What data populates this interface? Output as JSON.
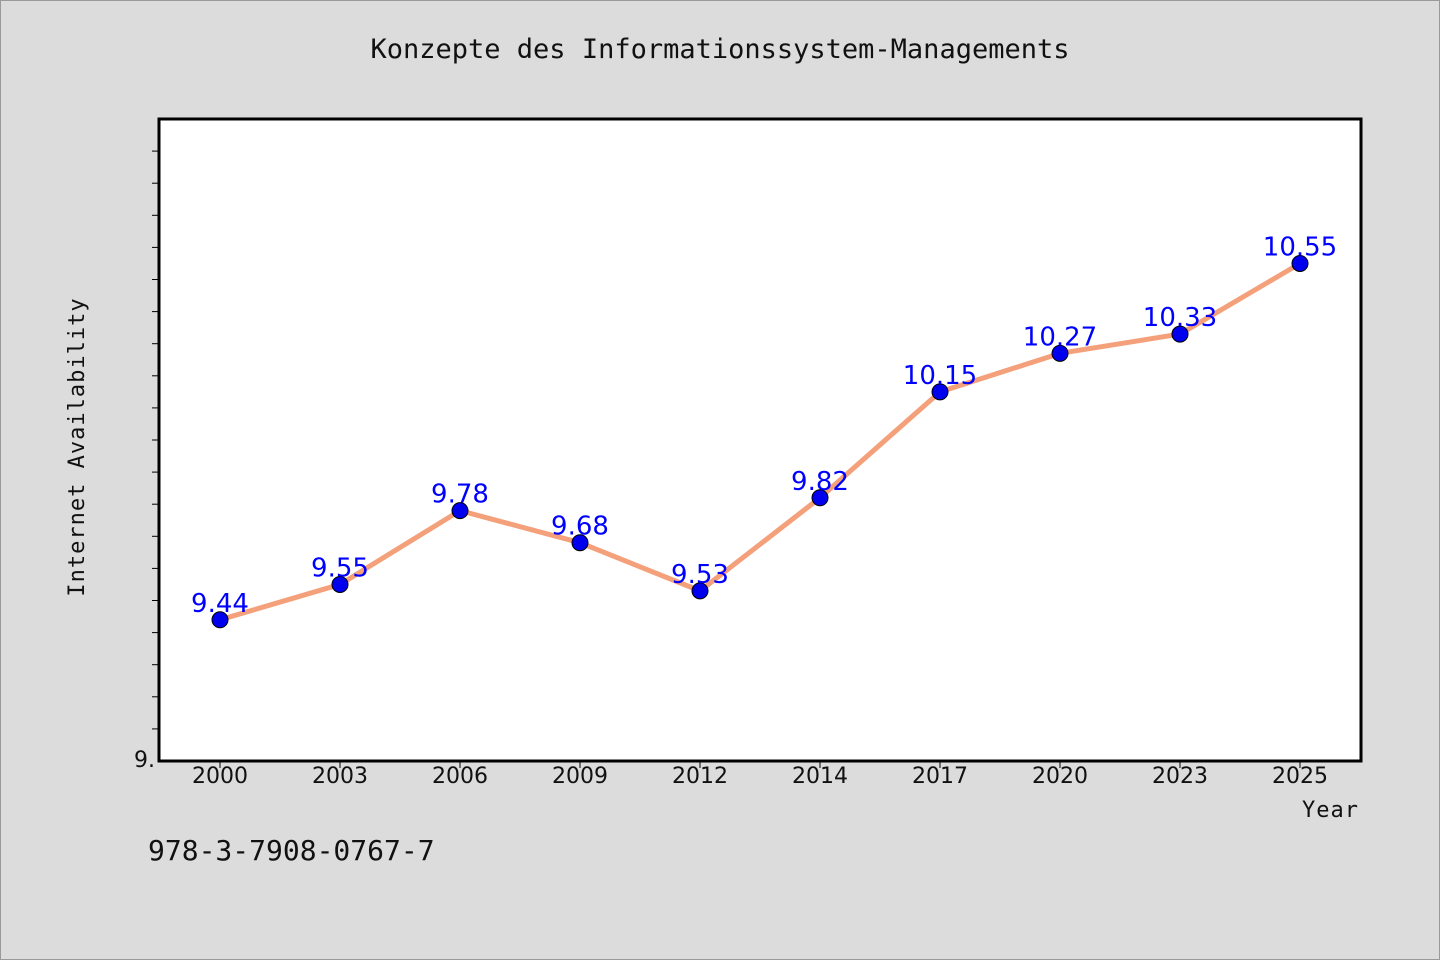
{
  "title": "Konzepte des Informationssystem-Managements",
  "footer_text": "978-3-7908-0767-7",
  "colors": {
    "background": "#dcdcdc",
    "plot_area": "#ffffff",
    "line": "#f4a07a",
    "marker": "#0000ee",
    "data_label": "#0000ff"
  },
  "chart_data": {
    "type": "line",
    "title": "Konzepte des Informationssystem-Managements",
    "xlabel": "Year",
    "ylabel": "Internet Availability",
    "categories": [
      "2000",
      "2003",
      "2006",
      "2009",
      "2012",
      "2014",
      "2017",
      "2020",
      "2023",
      "2025"
    ],
    "series": [
      {
        "values": [
          9.44,
          9.55,
          9.78,
          9.68,
          9.53,
          9.82,
          10.15,
          10.27,
          10.33,
          10.55
        ]
      }
    ],
    "data_labels": [
      "9.44",
      "9.55",
      "9.78",
      "9.68",
      "9.53",
      "9.82",
      "10.15",
      "10.27",
      "10.33",
      "10.55"
    ],
    "y_tick_labels": [
      "9."
    ],
    "ylim": [
      9.0,
      11.0
    ],
    "y_minor_tick_step": 0.1,
    "grid": false,
    "legend": "none"
  }
}
